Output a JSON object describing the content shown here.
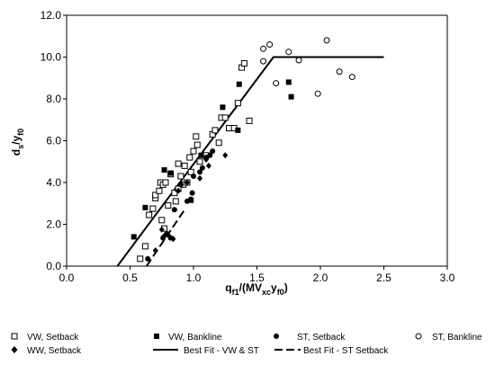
{
  "chart_data": {
    "type": "scatter",
    "xlim": [
      0,
      3.0
    ],
    "ylim": [
      0,
      12.0
    ],
    "x_ticks": [
      "0.0",
      "0.5",
      "1.0",
      "1.5",
      "2.0",
      "2.5",
      "3.0"
    ],
    "y_ticks": [
      "0.0",
      "2.0",
      "4.0",
      "6.0",
      "8.0",
      "10.0",
      "12.0"
    ],
    "xlabel": {
      "pre": "q",
      "sub1": "f1",
      "mid": "/(MV",
      "sub2": "xc",
      "mid2": "y",
      "sub3": "f0",
      "post": ")"
    },
    "ylabel": {
      "pre": "d",
      "sub1": "s",
      "mid": "/y",
      "sub2": "f0"
    },
    "grid": false,
    "legend_position": "bottom",
    "series": [
      {
        "name": "VW, Setback",
        "marker": "open-square",
        "points": [
          [
            0.58,
            0.35
          ],
          [
            0.62,
            0.95
          ],
          [
            0.65,
            2.45
          ],
          [
            0.68,
            2.75
          ],
          [
            0.7,
            3.25
          ],
          [
            0.7,
            3.4
          ],
          [
            0.73,
            3.6
          ],
          [
            0.74,
            4.0
          ],
          [
            0.75,
            2.2
          ],
          [
            0.76,
            3.9
          ],
          [
            0.77,
            1.8
          ],
          [
            0.78,
            4.0
          ],
          [
            0.8,
            2.9
          ],
          [
            0.82,
            4.4
          ],
          [
            0.85,
            3.5
          ],
          [
            0.86,
            3.1
          ],
          [
            0.88,
            4.9
          ],
          [
            0.88,
            3.7
          ],
          [
            0.9,
            4.3
          ],
          [
            0.92,
            3.9
          ],
          [
            0.93,
            4.8
          ],
          [
            0.95,
            4.0
          ],
          [
            0.97,
            5.2
          ],
          [
            0.98,
            4.5
          ],
          [
            1.0,
            5.5
          ],
          [
            1.02,
            6.2
          ],
          [
            1.03,
            5.8
          ],
          [
            1.05,
            5.0
          ],
          [
            1.1,
            5.3
          ],
          [
            1.15,
            6.3
          ],
          [
            1.17,
            6.5
          ],
          [
            1.2,
            5.9
          ],
          [
            1.22,
            7.1
          ],
          [
            1.25,
            7.1
          ],
          [
            1.28,
            6.6
          ],
          [
            1.32,
            6.6
          ],
          [
            1.35,
            7.8
          ],
          [
            1.38,
            9.5
          ],
          [
            1.4,
            9.7
          ],
          [
            1.44,
            6.95
          ]
        ]
      },
      {
        "name": "VW, Bankline",
        "marker": "filled-square",
        "points": [
          [
            0.53,
            1.4
          ],
          [
            0.62,
            2.8
          ],
          [
            0.77,
            4.6
          ],
          [
            0.82,
            4.45
          ],
          [
            0.98,
            3.15
          ],
          [
            1.06,
            5.3
          ],
          [
            1.23,
            7.6
          ],
          [
            1.35,
            6.5
          ],
          [
            1.36,
            8.7
          ],
          [
            1.75,
            8.8
          ],
          [
            1.77,
            8.1
          ]
        ]
      },
      {
        "name": "ST, Setback",
        "marker": "filled-circle",
        "points": [
          [
            0.64,
            0.35
          ],
          [
            0.76,
            1.35
          ],
          [
            0.79,
            1.55
          ],
          [
            0.82,
            1.35
          ],
          [
            0.85,
            2.7
          ],
          [
            0.9,
            3.9
          ],
          [
            0.95,
            3.1
          ],
          [
            0.98,
            3.2
          ],
          [
            0.99,
            3.5
          ],
          [
            1.0,
            4.3
          ],
          [
            1.05,
            4.5
          ],
          [
            1.07,
            4.7
          ],
          [
            1.1,
            5.2
          ],
          [
            1.13,
            5.3
          ],
          [
            1.15,
            5.5
          ]
        ]
      },
      {
        "name": "ST, Bankline",
        "marker": "open-circle",
        "points": [
          [
            1.6,
            10.6
          ],
          [
            1.55,
            10.4
          ],
          [
            1.55,
            9.8
          ],
          [
            1.65,
            8.75
          ],
          [
            1.75,
            10.25
          ],
          [
            1.83,
            9.85
          ],
          [
            1.98,
            8.25
          ],
          [
            2.05,
            10.8
          ],
          [
            2.15,
            9.3
          ],
          [
            2.25,
            9.05
          ]
        ]
      },
      {
        "name": "WW, Setback",
        "marker": "filled-diamond",
        "points": [
          [
            0.7,
            0.75
          ],
          [
            0.75,
            1.75
          ],
          [
            0.77,
            1.45
          ],
          [
            0.8,
            1.5
          ],
          [
            0.84,
            1.3
          ],
          [
            0.88,
            3.6
          ],
          [
            0.95,
            4.0
          ],
          [
            1.05,
            4.2
          ],
          [
            1.1,
            5.1
          ],
          [
            1.12,
            4.8
          ],
          [
            1.25,
            5.3
          ]
        ]
      }
    ],
    "lines": [
      {
        "name": "Best Fit - VW & ST",
        "style": "solid",
        "points": [
          [
            0.4,
            0
          ],
          [
            1.63,
            10.0
          ],
          [
            2.5,
            10.0
          ]
        ]
      },
      {
        "name": "Best Fit - ST Setback",
        "style": "dashed",
        "points": [
          [
            0.63,
            0
          ],
          [
            0.93,
            2.7
          ]
        ]
      }
    ]
  }
}
